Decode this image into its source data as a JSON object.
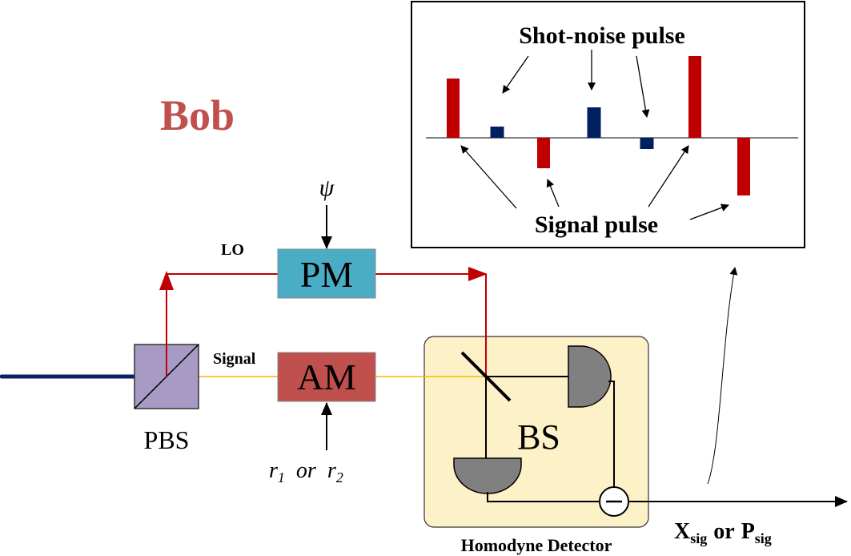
{
  "title": "Bob",
  "labels": {
    "lo": "LO",
    "signal": "Signal",
    "pbs": "PBS",
    "pm": "PM",
    "am": "AM",
    "bs": "BS",
    "homodyne": "Homodyne Detector",
    "psi": "ψ",
    "r_choice": {
      "r1_base": "r",
      "r1_sub": "1",
      "or": "or",
      "r2_base": "r",
      "r2_sub": "2"
    },
    "output": {
      "x_base": "X",
      "x_sub": "sig",
      "or": "or",
      "p_base": "P",
      "p_sub": "sig"
    }
  },
  "inset": {
    "shot_noise_label": "Shot-noise pulse",
    "signal_pulse_label": "Signal pulse",
    "pulses": [
      {
        "kind": "signal",
        "value": 0.74
      },
      {
        "kind": "shot-noise",
        "value": 0.14
      },
      {
        "kind": "signal",
        "value": -0.38
      },
      {
        "kind": "shot-noise",
        "value": 0.38
      },
      {
        "kind": "shot-noise",
        "value": -0.14
      },
      {
        "kind": "signal",
        "value": 1.02
      },
      {
        "kind": "signal",
        "value": -0.72
      }
    ]
  },
  "colors": {
    "bob": "#c0504d",
    "lo_beam": "#c00000",
    "signal_beam": "#f5b800",
    "fiber": "#0b2060",
    "pbs_fill": "#a79ac4",
    "pm_fill": "#4bacc6",
    "am_fill": "#c0504d",
    "detector_bg": "#fdf1c8",
    "photodiode": "#808080",
    "signal_pulse": "#c00000",
    "shot_noise_pulse": "#002060"
  }
}
